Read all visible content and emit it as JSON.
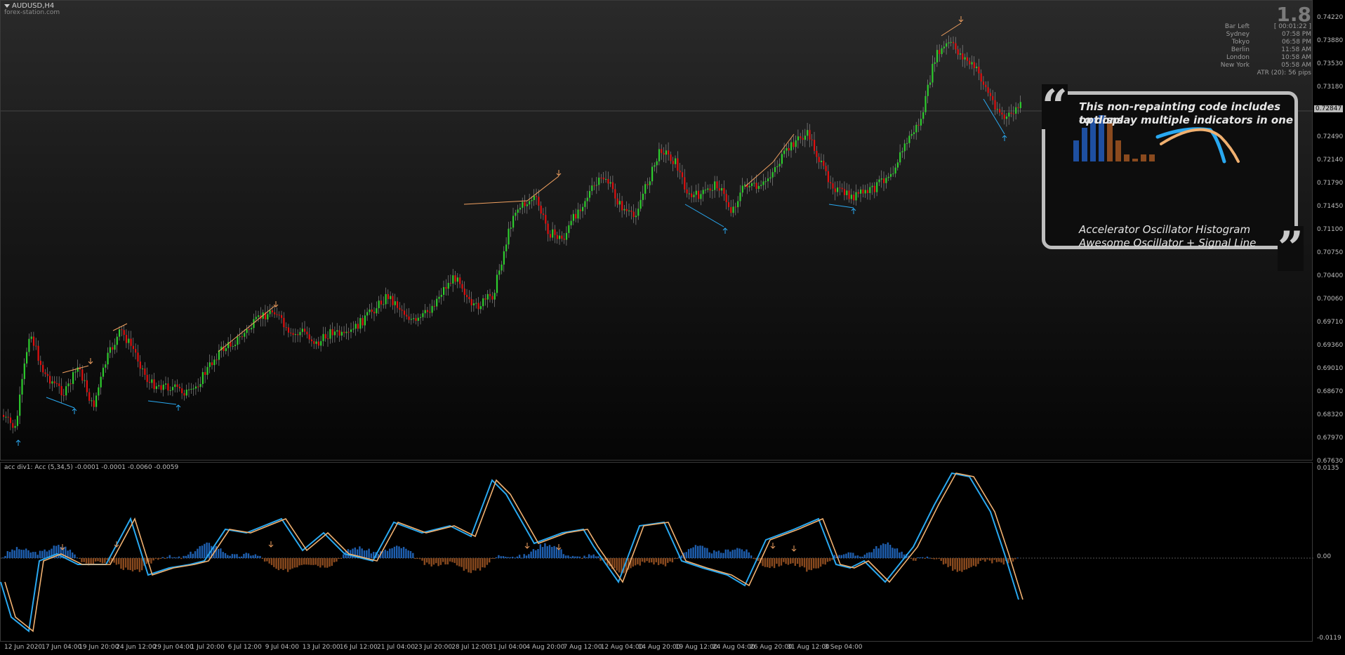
{
  "symbol": "AUDUSD,H4",
  "watermark": "forex-station.com",
  "big_number": "1.8",
  "info_rows": [
    {
      "label": "Bar Left",
      "value": "[ 00:01:22 ]"
    },
    {
      "label": "Sydney",
      "value": "07:58 PM"
    },
    {
      "label": "Tokyo",
      "value": "06:58 PM"
    },
    {
      "label": "Berlin",
      "value": "11:58 AM"
    },
    {
      "label": "London",
      "value": "10:58 AM"
    },
    {
      "label": "New York",
      "value": "05:58 AM"
    }
  ],
  "atr_text": "ATR (20): 56 pips",
  "current_price": "0.72847",
  "price_axis": [
    "0.74220",
    "0.73880",
    "0.73530",
    "0.73180",
    "0.72490",
    "0.72140",
    "0.71790",
    "0.71450",
    "0.71100",
    "0.70750",
    "0.70400",
    "0.70060",
    "0.69710",
    "0.69360",
    "0.69010",
    "0.68670",
    "0.68320",
    "0.67970",
    "0.67630"
  ],
  "indicator_title": "acc div1: Acc (5,34,5) -0.0001 -0.0001 -0.0060 -0.0059",
  "sub_axis": [
    "0.0135",
    "0.00",
    "-0.0119"
  ],
  "time_axis": [
    "12 Jun 2020",
    "17 Jun 04:00",
    "19 Jun 20:00",
    "24 Jun 12:00",
    "29 Jun 04:00",
    "1 Jul 20:00",
    "6 Jul 12:00",
    "9 Jul 04:00",
    "13 Jul 20:00",
    "16 Jul 12:00",
    "21 Jul 04:00",
    "23 Jul 20:00",
    "28 Jul 12:00",
    "31 Jul 04:00",
    "4 Aug 20:00",
    "7 Aug 12:00",
    "12 Aug 04:00",
    "14 Aug 20:00",
    "19 Aug 12:00",
    "24 Aug 04:00",
    "26 Aug 20:00",
    "31 Aug 12:00",
    "3 Sep 04:00"
  ],
  "callout": {
    "line1": "This non-repainting code includes options",
    "line2": "to display multiple indicators in one",
    "line3": "Accelerator Oscillator Histogram",
    "line4": "Awesome Oscillator + Signal Line"
  },
  "colors": {
    "bull": "#2ecc2e",
    "bear": "#e01010",
    "signal_blue": "#29a8f0",
    "signal_orange": "#f0b070",
    "hist_blue": "#1e5fb0",
    "hist_brown": "#8a4a1e"
  }
}
